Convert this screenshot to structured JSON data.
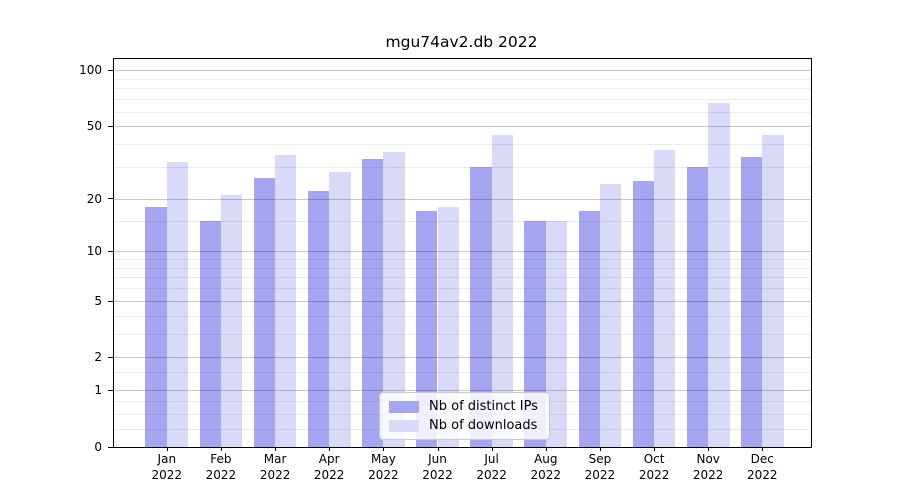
{
  "chart_data": {
    "type": "bar",
    "title": "mgu74av2.db 2022",
    "categories": [
      "Jan 2022",
      "Feb 2022",
      "Mar 2022",
      "Apr 2022",
      "May 2022",
      "Jun 2022",
      "Jul 2022",
      "Aug 2022",
      "Sep 2022",
      "Oct 2022",
      "Nov 2022",
      "Dec 2022"
    ],
    "series": [
      {
        "name": "Nb of distinct IPs",
        "color": "#a5a5f2",
        "values": [
          18,
          15,
          26,
          22,
          33,
          17,
          30,
          15,
          17,
          25,
          30,
          34
        ]
      },
      {
        "name": "Nb of downloads",
        "color": "#d9d9f8",
        "values": [
          32,
          21,
          35,
          28,
          36,
          18,
          45,
          15,
          24,
          37,
          67,
          45
        ]
      }
    ],
    "yscale": "log1p",
    "ylim": [
      0,
      115
    ],
    "yticks": [
      0,
      1,
      2,
      5,
      10,
      20,
      50,
      100
    ],
    "yticks_minor": [
      0.25,
      0.5,
      0.75,
      1.5,
      3,
      4,
      6,
      7,
      8,
      9,
      15,
      30,
      40,
      60,
      70,
      80,
      90
    ],
    "grid": true,
    "legend_position": "inside-bottom-center"
  },
  "colors": {
    "axis": "#000000",
    "grid_major": "#d2d2d2",
    "grid_minor": "#ebebeb",
    "background": "#ffffff"
  }
}
